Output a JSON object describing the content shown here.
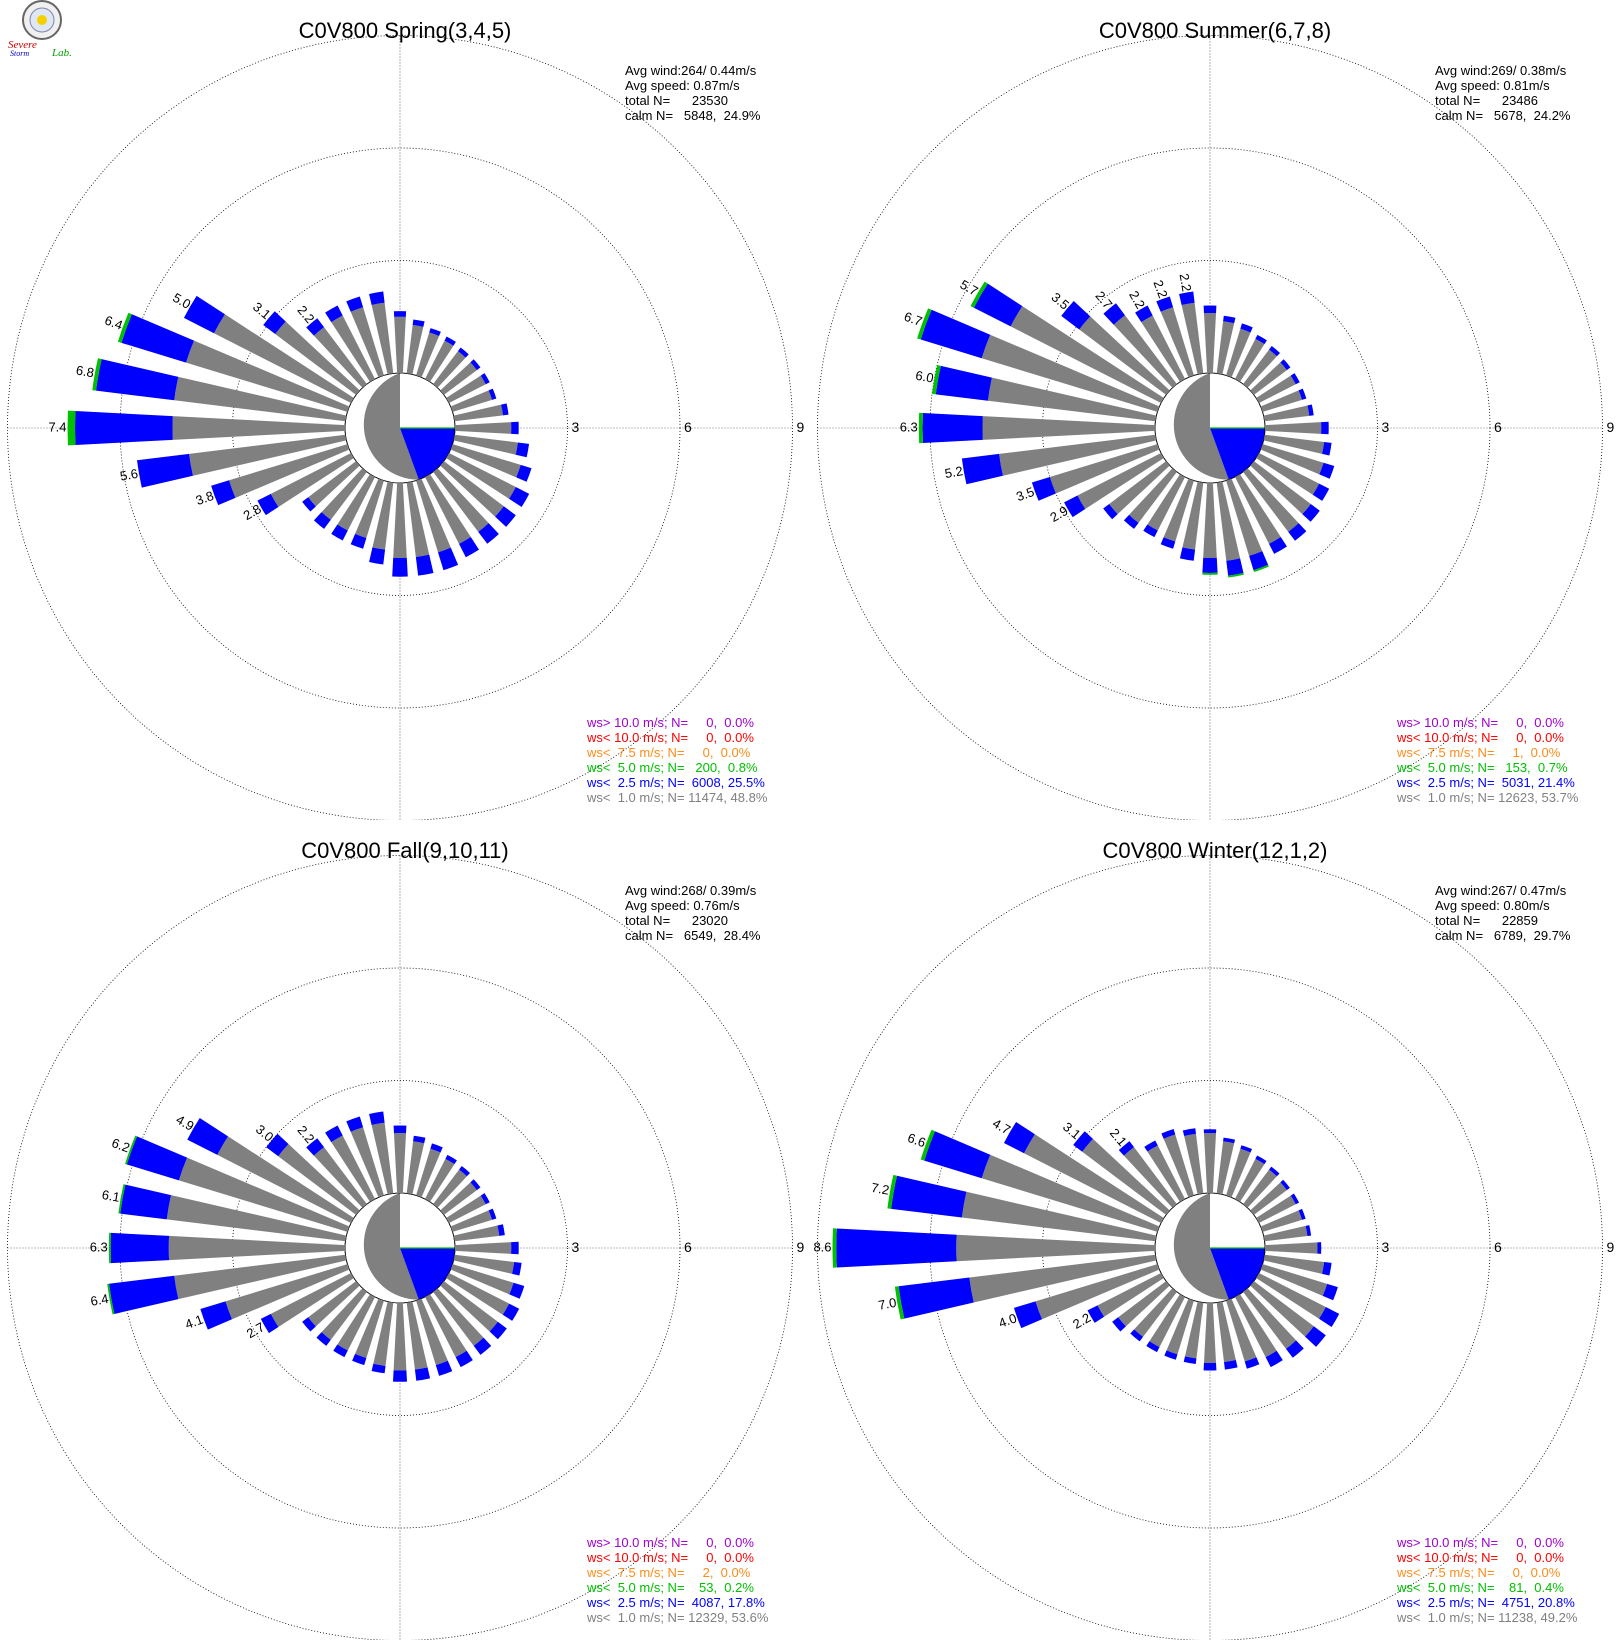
{
  "logo": {
    "text_1": "Severe",
    "text_2": "Storm",
    "text_3": "Lab."
  },
  "colors": {
    "gray": "#808080",
    "blue": "#0000ff",
    "green": "#00c000",
    "orange": "#ff8c1a",
    "red": "#ff0000",
    "purple": "#a000d0"
  },
  "chart_data": [
    {
      "type": "polar-bar",
      "title": "C0V800 Spring(3,4,5)",
      "r_ticks": [
        "3",
        "6",
        "9"
      ],
      "stats": [
        "Avg wind:264/ 0.44m/s",
        "Avg speed: 0.87m/s",
        "total N=      23530",
        "calm N=   5848,  24.9%"
      ],
      "legend": [
        {
          "text": "ws> 10.0 m/s; N=     0,  0.0%",
          "color": "purple"
        },
        {
          "text": "ws< 10.0 m/s; N=     0,  0.0%",
          "color": "red"
        },
        {
          "text": "ws<  7.5 m/s; N=     0,  0.0%",
          "color": "orange"
        },
        {
          "text": "ws<  5.0 m/s; N=   200,  0.8%",
          "color": "green"
        },
        {
          "text": "ws<  2.5 m/s; N=  6008, 25.5%",
          "color": "blue"
        },
        {
          "text": "ws<  1.0 m/s; N= 11474, 48.8%",
          "color": "gray"
        }
      ],
      "sectors": [
        {
          "dir": 270,
          "gray": 4.6,
          "blue": 2.6,
          "green": 0.2,
          "label": "7.4"
        },
        {
          "dir": 280,
          "gray": 4.6,
          "blue": 2.1,
          "green": 0.1,
          "label": "6.8"
        },
        {
          "dir": 290,
          "gray": 4.5,
          "blue": 1.8,
          "green": 0.1,
          "label": "6.4"
        },
        {
          "dir": 300,
          "gray": 4.1,
          "blue": 0.9,
          "label": "5.0"
        },
        {
          "dir": 310,
          "gray": 2.7,
          "blue": 0.4,
          "label": "3.1"
        },
        {
          "dir": 320,
          "gray": 1.9,
          "blue": 0.3,
          "label": "2.2"
        },
        {
          "dir": 330,
          "gray": 1.9,
          "blue": 0.3
        },
        {
          "dir": 340,
          "gray": 1.9,
          "blue": 0.3
        },
        {
          "dir": 350,
          "gray": 1.9,
          "blue": 0.3
        },
        {
          "dir": 0,
          "gray": 1.5,
          "blue": 0.15
        },
        {
          "dir": 10,
          "gray": 1.3,
          "blue": 0.15
        },
        {
          "dir": 20,
          "gray": 1.2,
          "blue": 0.12
        },
        {
          "dir": 30,
          "gray": 1.15,
          "blue": 0.12
        },
        {
          "dir": 40,
          "gray": 1.1,
          "blue": 0.12
        },
        {
          "dir": 50,
          "gray": 1.1,
          "blue": 0.12
        },
        {
          "dir": 60,
          "gray": 1.1,
          "blue": 0.12
        },
        {
          "dir": 70,
          "gray": 1.1,
          "blue": 0.12
        },
        {
          "dir": 80,
          "gray": 1.3,
          "blue": 0.15
        },
        {
          "dir": 90,
          "gray": 1.5,
          "blue": 0.2
        },
        {
          "dir": 100,
          "gray": 1.7,
          "blue": 0.3
        },
        {
          "dir": 110,
          "gray": 1.9,
          "blue": 0.3
        },
        {
          "dir": 120,
          "gray": 2.0,
          "blue": 0.4
        },
        {
          "dir": 130,
          "gray": 2.0,
          "blue": 0.4
        },
        {
          "dir": 140,
          "gray": 2.0,
          "blue": 0.4
        },
        {
          "dir": 150,
          "gray": 2.0,
          "blue": 0.4
        },
        {
          "dir": 160,
          "gray": 2.0,
          "blue": 0.5
        },
        {
          "dir": 170,
          "gray": 2.0,
          "blue": 0.5
        },
        {
          "dir": 180,
          "gray": 2.0,
          "blue": 0.5
        },
        {
          "dir": 190,
          "gray": 1.8,
          "blue": 0.4
        },
        {
          "dir": 200,
          "gray": 1.6,
          "blue": 0.3
        },
        {
          "dir": 210,
          "gray": 1.6,
          "blue": 0.3
        },
        {
          "dir": 220,
          "gray": 1.6,
          "blue": 0.3
        },
        {
          "dir": 230,
          "gray": 1.6,
          "blue": 0.2
        },
        {
          "dir": 240,
          "gray": 2.4,
          "blue": 0.4,
          "label": "2.8"
        },
        {
          "dir": 250,
          "gray": 3.3,
          "blue": 0.5,
          "label": "3.8"
        },
        {
          "dir": 260,
          "gray": 4.2,
          "blue": 1.4,
          "label": "5.6"
        }
      ]
    },
    {
      "type": "polar-bar",
      "title": "C0V800 Summer(6,7,8)",
      "r_ticks": [
        "3",
        "6",
        "9"
      ],
      "stats": [
        "Avg wind:269/ 0.38m/s",
        "Avg speed: 0.81m/s",
        "total N=      23486",
        "calm N=   5678,  24.2%"
      ],
      "legend": [
        {
          "text": "ws> 10.0 m/s; N=     0,  0.0%",
          "color": "purple"
        },
        {
          "text": "ws< 10.0 m/s; N=     0,  0.0%",
          "color": "red"
        },
        {
          "text": "ws<  7.5 m/s; N=     1,  0.0%",
          "color": "orange"
        },
        {
          "text": "ws<  5.0 m/s; N=   153,  0.7%",
          "color": "green"
        },
        {
          "text": "ws<  2.5 m/s; N=  5031, 21.4%",
          "color": "blue"
        },
        {
          "text": "ws<  1.0 m/s; N= 12623, 53.7%",
          "color": "gray"
        }
      ],
      "sectors": [
        {
          "dir": 270,
          "gray": 4.6,
          "blue": 1.6,
          "green": 0.1,
          "label": "6.3"
        },
        {
          "dir": 280,
          "gray": 4.5,
          "blue": 1.4,
          "green": 0.1,
          "label": "6.0"
        },
        {
          "dir": 290,
          "gray": 4.9,
          "blue": 1.7,
          "green": 0.1,
          "label": "6.7"
        },
        {
          "dir": 300,
          "gray": 4.5,
          "blue": 1.1,
          "green": 0.1,
          "label": "5.7"
        },
        {
          "dir": 310,
          "gray": 2.9,
          "blue": 0.6,
          "label": "3.5"
        },
        {
          "dir": 320,
          "gray": 2.3,
          "blue": 0.4,
          "label": "2.7"
        },
        {
          "dir": 330,
          "gray": 1.9,
          "blue": 0.3,
          "label": "2.2"
        },
        {
          "dir": 340,
          "gray": 1.9,
          "blue": 0.3,
          "label": "2.2"
        },
        {
          "dir": 350,
          "gray": 1.9,
          "blue": 0.3,
          "label": "2.2"
        },
        {
          "dir": 0,
          "gray": 1.6,
          "blue": 0.2
        },
        {
          "dir": 10,
          "gray": 1.4,
          "blue": 0.15
        },
        {
          "dir": 20,
          "gray": 1.3,
          "blue": 0.15
        },
        {
          "dir": 30,
          "gray": 1.2,
          "blue": 0.12
        },
        {
          "dir": 40,
          "gray": 1.15,
          "blue": 0.12
        },
        {
          "dir": 50,
          "gray": 1.1,
          "blue": 0.12
        },
        {
          "dir": 60,
          "gray": 1.1,
          "blue": 0.12
        },
        {
          "dir": 70,
          "gray": 1.1,
          "blue": 0.12
        },
        {
          "dir": 80,
          "gray": 1.2,
          "blue": 0.12
        },
        {
          "dir": 90,
          "gray": 1.5,
          "blue": 0.2
        },
        {
          "dir": 100,
          "gray": 1.6,
          "blue": 0.2
        },
        {
          "dir": 110,
          "gray": 1.7,
          "blue": 0.3
        },
        {
          "dir": 120,
          "gray": 1.8,
          "blue": 0.3
        },
        {
          "dir": 130,
          "gray": 1.9,
          "blue": 0.3
        },
        {
          "dir": 140,
          "gray": 2.0,
          "blue": 0.3
        },
        {
          "dir": 150,
          "gray": 2.0,
          "blue": 0.3
        },
        {
          "dir": 160,
          "gray": 2.1,
          "blue": 0.4,
          "green": 0.05
        },
        {
          "dir": 170,
          "gray": 2.1,
          "blue": 0.4,
          "green": 0.05
        },
        {
          "dir": 180,
          "gray": 2.0,
          "blue": 0.4,
          "green": 0.05
        },
        {
          "dir": 190,
          "gray": 1.8,
          "blue": 0.3
        },
        {
          "dir": 200,
          "gray": 1.7,
          "blue": 0.2
        },
        {
          "dir": 210,
          "gray": 1.6,
          "blue": 0.2
        },
        {
          "dir": 220,
          "gray": 1.7,
          "blue": 0.2
        },
        {
          "dir": 230,
          "gray": 1.9,
          "blue": 0.2
        },
        {
          "dir": 240,
          "gray": 2.5,
          "blue": 0.4,
          "label": "2.9"
        },
        {
          "dir": 250,
          "gray": 3.0,
          "blue": 0.5,
          "label": "3.5"
        },
        {
          "dir": 260,
          "gray": 4.2,
          "blue": 1.0,
          "label": "5.2"
        }
      ]
    },
    {
      "type": "polar-bar",
      "title": "C0V800 Fall(9,10,11)",
      "r_ticks": [
        "3",
        "6",
        "9"
      ],
      "stats": [
        "Avg wind:268/ 0.39m/s",
        "Avg speed: 0.76m/s",
        "total N=      23020",
        "calm N=   6549,  28.4%"
      ],
      "legend": [
        {
          "text": "ws> 10.0 m/s; N=     0,  0.0%",
          "color": "purple"
        },
        {
          "text": "ws< 10.0 m/s; N=     0,  0.0%",
          "color": "red"
        },
        {
          "text": "ws<  7.5 m/s; N=     2,  0.0%",
          "color": "orange"
        },
        {
          "text": "ws<  5.0 m/s; N=    53,  0.2%",
          "color": "green"
        },
        {
          "text": "ws<  2.5 m/s; N=  4087, 17.8%",
          "color": "blue"
        },
        {
          "text": "ws<  1.0 m/s; N= 12329, 53.6%",
          "color": "gray"
        }
      ],
      "sectors": [
        {
          "dir": 270,
          "gray": 4.7,
          "blue": 1.55,
          "green": 0.05,
          "label": "6.3"
        },
        {
          "dir": 280,
          "gray": 4.8,
          "blue": 1.25,
          "green": 0.05,
          "label": "6.1"
        },
        {
          "dir": 290,
          "gray": 4.7,
          "blue": 1.45,
          "green": 0.05,
          "label": "6.2"
        },
        {
          "dir": 300,
          "gray": 4.0,
          "blue": 0.9,
          "label": "4.9"
        },
        {
          "dir": 310,
          "gray": 2.6,
          "blue": 0.4,
          "label": "3.0"
        },
        {
          "dir": 320,
          "gray": 1.9,
          "blue": 0.3,
          "label": "2.2"
        },
        {
          "dir": 330,
          "gray": 1.9,
          "blue": 0.3
        },
        {
          "dir": 340,
          "gray": 1.9,
          "blue": 0.3
        },
        {
          "dir": 350,
          "gray": 1.9,
          "blue": 0.3
        },
        {
          "dir": 0,
          "gray": 1.6,
          "blue": 0.2
        },
        {
          "dir": 10,
          "gray": 1.4,
          "blue": 0.15
        },
        {
          "dir": 20,
          "gray": 1.3,
          "blue": 0.15
        },
        {
          "dir": 30,
          "gray": 1.2,
          "blue": 0.12
        },
        {
          "dir": 40,
          "gray": 1.15,
          "blue": 0.12
        },
        {
          "dir": 50,
          "gray": 1.1,
          "blue": 0.12
        },
        {
          "dir": 60,
          "gray": 1.1,
          "blue": 0.12
        },
        {
          "dir": 70,
          "gray": 1.1,
          "blue": 0.12
        },
        {
          "dir": 80,
          "gray": 1.2,
          "blue": 0.15
        },
        {
          "dir": 90,
          "gray": 1.5,
          "blue": 0.2
        },
        {
          "dir": 100,
          "gray": 1.6,
          "blue": 0.2
        },
        {
          "dir": 110,
          "gray": 1.7,
          "blue": 0.3
        },
        {
          "dir": 120,
          "gray": 1.8,
          "blue": 0.3
        },
        {
          "dir": 130,
          "gray": 1.8,
          "blue": 0.3
        },
        {
          "dir": 140,
          "gray": 1.8,
          "blue": 0.3
        },
        {
          "dir": 150,
          "gray": 1.8,
          "blue": 0.3
        },
        {
          "dir": 160,
          "gray": 1.8,
          "blue": 0.3
        },
        {
          "dir": 170,
          "gray": 1.8,
          "blue": 0.3
        },
        {
          "dir": 180,
          "gray": 1.8,
          "blue": 0.3
        },
        {
          "dir": 190,
          "gray": 1.7,
          "blue": 0.2
        },
        {
          "dir": 200,
          "gray": 1.6,
          "blue": 0.2
        },
        {
          "dir": 210,
          "gray": 1.6,
          "blue": 0.2
        },
        {
          "dir": 220,
          "gray": 1.6,
          "blue": 0.2
        },
        {
          "dir": 230,
          "gray": 1.6,
          "blue": 0.2
        },
        {
          "dir": 240,
          "gray": 2.4,
          "blue": 0.3,
          "label": "2.7"
        },
        {
          "dir": 250,
          "gray": 3.4,
          "blue": 0.7,
          "label": "4.1"
        },
        {
          "dir": 260,
          "gray": 4.6,
          "blue": 1.75,
          "green": 0.05,
          "label": "6.4"
        }
      ]
    },
    {
      "type": "polar-bar",
      "title": "C0V800 Winter(12,1,2)",
      "r_ticks": [
        "3",
        "6",
        "9"
      ],
      "stats": [
        "Avg wind:267/ 0.47m/s",
        "Avg speed: 0.80m/s",
        "total N=      22859",
        "calm N=   6789,  29.7%"
      ],
      "legend": [
        {
          "text": "ws> 10.0 m/s; N=     0,  0.0%",
          "color": "purple"
        },
        {
          "text": "ws< 10.0 m/s; N=     0,  0.0%",
          "color": "red"
        },
        {
          "text": "ws<  7.5 m/s; N=     0,  0.0%",
          "color": "orange"
        },
        {
          "text": "ws<  5.0 m/s; N=    81,  0.4%",
          "color": "green"
        },
        {
          "text": "ws<  2.5 m/s; N=  4751, 20.8%",
          "color": "blue"
        },
        {
          "text": "ws<  1.0 m/s; N= 11238, 49.2%",
          "color": "gray"
        }
      ],
      "sectors": [
        {
          "dir": 270,
          "gray": 5.3,
          "blue": 3.2,
          "green": 0.1,
          "label": "8.6"
        },
        {
          "dir": 280,
          "gray": 5.2,
          "blue": 1.9,
          "green": 0.1,
          "label": "7.2"
        },
        {
          "dir": 290,
          "gray": 4.9,
          "blue": 1.6,
          "green": 0.1,
          "label": "6.6"
        },
        {
          "dir": 300,
          "gray": 4.1,
          "blue": 0.6,
          "label": "4.7"
        },
        {
          "dir": 310,
          "gray": 2.8,
          "blue": 0.3,
          "label": "3.1"
        },
        {
          "dir": 320,
          "gray": 1.9,
          "blue": 0.2,
          "label": "2.1"
        },
        {
          "dir": 330,
          "gray": 1.6,
          "blue": 0.15
        },
        {
          "dir": 340,
          "gray": 1.7,
          "blue": 0.15
        },
        {
          "dir": 350,
          "gray": 1.6,
          "blue": 0.15
        },
        {
          "dir": 0,
          "gray": 1.6,
          "blue": 0.1
        },
        {
          "dir": 10,
          "gray": 1.4,
          "blue": 0.1
        },
        {
          "dir": 20,
          "gray": 1.3,
          "blue": 0.1
        },
        {
          "dir": 30,
          "gray": 1.2,
          "blue": 0.1
        },
        {
          "dir": 40,
          "gray": 1.15,
          "blue": 0.1
        },
        {
          "dir": 50,
          "gray": 1.1,
          "blue": 0.1
        },
        {
          "dir": 60,
          "gray": 1.1,
          "blue": 0.1
        },
        {
          "dir": 70,
          "gray": 1.1,
          "blue": 0.1
        },
        {
          "dir": 80,
          "gray": 1.15,
          "blue": 0.1
        },
        {
          "dir": 90,
          "gray": 1.4,
          "blue": 0.1
        },
        {
          "dir": 100,
          "gray": 1.6,
          "blue": 0.2
        },
        {
          "dir": 110,
          "gray": 1.8,
          "blue": 0.3
        },
        {
          "dir": 120,
          "gray": 2.0,
          "blue": 0.4
        },
        {
          "dir": 130,
          "gray": 2.0,
          "blue": 0.4
        },
        {
          "dir": 140,
          "gray": 1.9,
          "blue": 0.3
        },
        {
          "dir": 150,
          "gray": 1.8,
          "blue": 0.3
        },
        {
          "dir": 160,
          "gray": 1.7,
          "blue": 0.2
        },
        {
          "dir": 170,
          "gray": 1.6,
          "blue": 0.2
        },
        {
          "dir": 180,
          "gray": 1.6,
          "blue": 0.2
        },
        {
          "dir": 190,
          "gray": 1.5,
          "blue": 0.15
        },
        {
          "dir": 200,
          "gray": 1.5,
          "blue": 0.15
        },
        {
          "dir": 210,
          "gray": 1.5,
          "blue": 0.15
        },
        {
          "dir": 220,
          "gray": 1.5,
          "blue": 0.15
        },
        {
          "dir": 230,
          "gray": 1.6,
          "blue": 0.2
        },
        {
          "dir": 240,
          "gray": 1.9,
          "blue": 0.3,
          "label": "2.2"
        },
        {
          "dir": 250,
          "gray": 3.4,
          "blue": 0.6,
          "label": "4.0"
        },
        {
          "dir": 260,
          "gray": 5.0,
          "blue": 1.9,
          "green": 0.1,
          "label": "7.0"
        }
      ]
    }
  ]
}
